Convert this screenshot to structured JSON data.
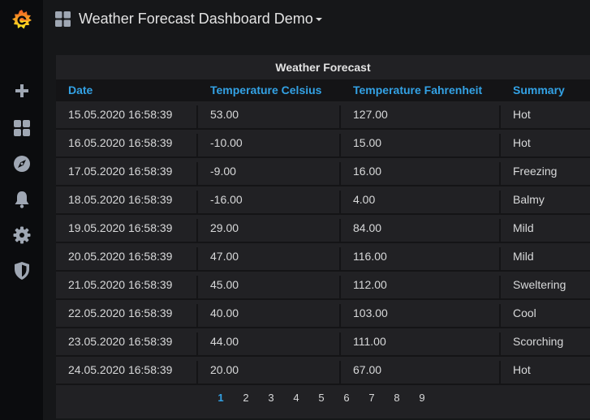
{
  "header": {
    "dashboard_title": "Weather Forecast Dashboard Demo"
  },
  "sidebar": {
    "items": [
      {
        "icon": "grafana-logo-icon"
      },
      {
        "icon": "plus-icon"
      },
      {
        "icon": "dashboards-icon"
      },
      {
        "icon": "explore-compass-icon"
      },
      {
        "icon": "alerting-bell-icon"
      },
      {
        "icon": "configuration-gear-icon"
      },
      {
        "icon": "server-admin-shield-icon"
      }
    ]
  },
  "panel": {
    "title": "Weather Forecast",
    "columns": [
      "Date",
      "Temperature Celsius",
      "Temperature Fahrenheit",
      "Summary"
    ],
    "rows": [
      [
        "15.05.2020 16:58:39",
        "53.00",
        "127.00",
        "Hot"
      ],
      [
        "16.05.2020 16:58:39",
        "-10.00",
        "15.00",
        "Hot"
      ],
      [
        "17.05.2020 16:58:39",
        "-9.00",
        "16.00",
        "Freezing"
      ],
      [
        "18.05.2020 16:58:39",
        "-16.00",
        "4.00",
        "Balmy"
      ],
      [
        "19.05.2020 16:58:39",
        "29.00",
        "84.00",
        "Mild"
      ],
      [
        "20.05.2020 16:58:39",
        "47.00",
        "116.00",
        "Mild"
      ],
      [
        "21.05.2020 16:58:39",
        "45.00",
        "112.00",
        "Sweltering"
      ],
      [
        "22.05.2020 16:58:39",
        "40.00",
        "103.00",
        "Cool"
      ],
      [
        "23.05.2020 16:58:39",
        "44.00",
        "111.00",
        "Scorching"
      ],
      [
        "24.05.2020 16:58:39",
        "20.00",
        "67.00",
        "Hot"
      ]
    ],
    "pagination": {
      "pages": [
        "1",
        "2",
        "3",
        "4",
        "5",
        "6",
        "7",
        "8",
        "9"
      ],
      "active": "1"
    }
  },
  "colors": {
    "accent": "#33a2e5",
    "background": "#161719",
    "panel": "#212124",
    "sidebar": "#0b0c0e"
  }
}
